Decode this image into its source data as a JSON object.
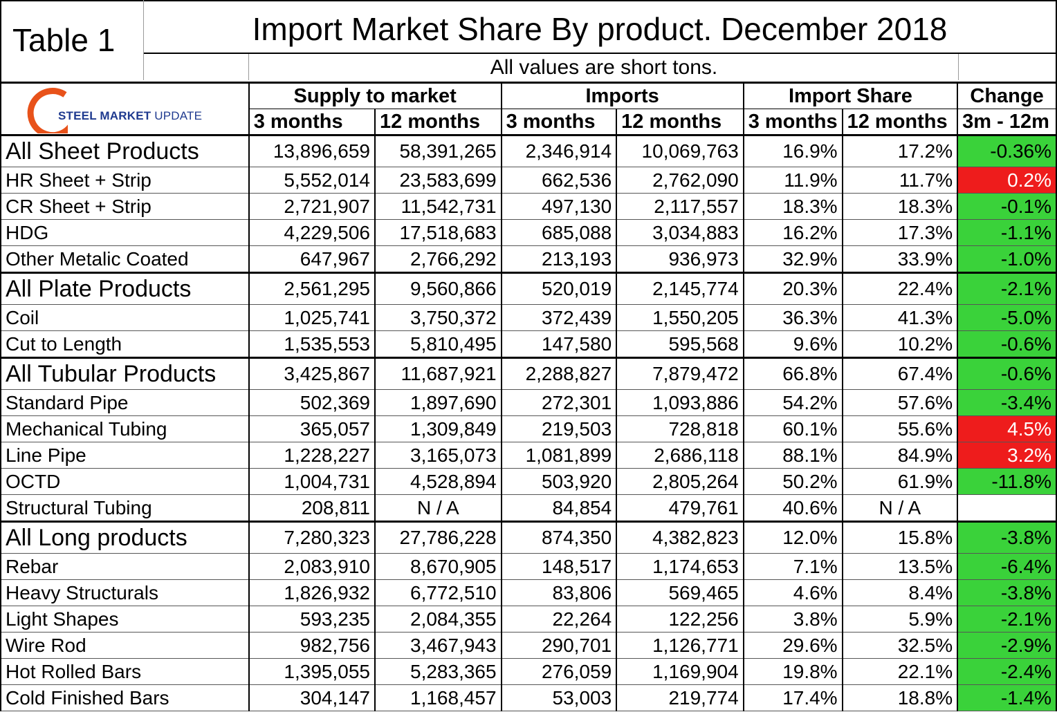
{
  "table_label": "Table 1",
  "title": "Import Market Share By product. December 2018",
  "units_note": "All values are short tons.",
  "logo": {
    "bold": "STEEL MARKET",
    "light": " UPDATE",
    "accent_color": "#e8521a"
  },
  "headers": {
    "groups": [
      "Supply to market",
      "Imports",
      "Import Share",
      "Change"
    ],
    "sub": [
      "3 months",
      "12 months",
      "3 months",
      "12 months",
      "3 months",
      "12 months",
      "3m - 12m"
    ]
  },
  "colors": {
    "positive_change": "#ee1c1c",
    "negative_change": "#3ad23a"
  },
  "rows": [
    {
      "product": "All Sheet Products",
      "category": true,
      "supply_3m": "13,896,659",
      "supply_12m": "58,391,265",
      "imports_3m": "2,346,914",
      "imports_12m": "10,069,763",
      "share_3m": "16.9%",
      "share_12m": "17.2%",
      "change": "-0.36%",
      "change_color": "green"
    },
    {
      "product": "HR Sheet + Strip",
      "category": false,
      "supply_3m": "5,552,014",
      "supply_12m": "23,583,699",
      "imports_3m": "662,536",
      "imports_12m": "2,762,090",
      "share_3m": "11.9%",
      "share_12m": "11.7%",
      "change": "0.2%",
      "change_color": "red"
    },
    {
      "product": "CR Sheet + Strip",
      "category": false,
      "supply_3m": "2,721,907",
      "supply_12m": "11,542,731",
      "imports_3m": "497,130",
      "imports_12m": "2,117,557",
      "share_3m": "18.3%",
      "share_12m": "18.3%",
      "change": "-0.1%",
      "change_color": "green"
    },
    {
      "product": "HDG",
      "category": false,
      "supply_3m": "4,229,506",
      "supply_12m": "17,518,683",
      "imports_3m": "685,088",
      "imports_12m": "3,034,883",
      "share_3m": "16.2%",
      "share_12m": "17.3%",
      "change": "-1.1%",
      "change_color": "green"
    },
    {
      "product": "Other Metalic Coated",
      "category": false,
      "supply_3m": "647,967",
      "supply_12m": "2,766,292",
      "imports_3m": "213,193",
      "imports_12m": "936,973",
      "share_3m": "32.9%",
      "share_12m": "33.9%",
      "change": "-1.0%",
      "change_color": "green"
    },
    {
      "product": "All Plate Products",
      "category": true,
      "supply_3m": "2,561,295",
      "supply_12m": "9,560,866",
      "imports_3m": "520,019",
      "imports_12m": "2,145,774",
      "share_3m": "20.3%",
      "share_12m": "22.4%",
      "change": "-2.1%",
      "change_color": "green"
    },
    {
      "product": "Coil",
      "category": false,
      "supply_3m": "1,025,741",
      "supply_12m": "3,750,372",
      "imports_3m": "372,439",
      "imports_12m": "1,550,205",
      "share_3m": "36.3%",
      "share_12m": "41.3%",
      "change": "-5.0%",
      "change_color": "green"
    },
    {
      "product": "Cut to Length",
      "category": false,
      "supply_3m": "1,535,553",
      "supply_12m": "5,810,495",
      "imports_3m": "147,580",
      "imports_12m": "595,568",
      "share_3m": "9.6%",
      "share_12m": "10.2%",
      "change": "-0.6%",
      "change_color": "green"
    },
    {
      "product": "All Tubular Products",
      "category": true,
      "supply_3m": "3,425,867",
      "supply_12m": "11,687,921",
      "imports_3m": "2,288,827",
      "imports_12m": "7,879,472",
      "share_3m": "66.8%",
      "share_12m": "67.4%",
      "change": "-0.6%",
      "change_color": "green"
    },
    {
      "product": "Standard Pipe",
      "category": false,
      "supply_3m": "502,369",
      "supply_12m": "1,897,690",
      "imports_3m": "272,301",
      "imports_12m": "1,093,886",
      "share_3m": "54.2%",
      "share_12m": "57.6%",
      "change": "-3.4%",
      "change_color": "green"
    },
    {
      "product": "Mechanical Tubing",
      "category": false,
      "supply_3m": "365,057",
      "supply_12m": "1,309,849",
      "imports_3m": "219,503",
      "imports_12m": "728,818",
      "share_3m": "60.1%",
      "share_12m": "55.6%",
      "change": "4.5%",
      "change_color": "red"
    },
    {
      "product": "Line Pipe",
      "category": false,
      "supply_3m": "1,228,227",
      "supply_12m": "3,165,073",
      "imports_3m": "1,081,899",
      "imports_12m": "2,686,118",
      "share_3m": "88.1%",
      "share_12m": "84.9%",
      "change": "3.2%",
      "change_color": "red"
    },
    {
      "product": "OCTD",
      "category": false,
      "supply_3m": "1,004,731",
      "supply_12m": "4,528,894",
      "imports_3m": "503,920",
      "imports_12m": "2,805,264",
      "share_3m": "50.2%",
      "share_12m": "61.9%",
      "change": "-11.8%",
      "change_color": "green"
    },
    {
      "product": "Structural Tubing",
      "category": false,
      "supply_3m": "208,811",
      "supply_12m": "N / A",
      "imports_3m": "84,854",
      "imports_12m": "479,761",
      "share_3m": "40.6%",
      "share_12m": "N / A",
      "change": "",
      "change_color": "none"
    },
    {
      "product": "All Long products",
      "category": true,
      "supply_3m": "7,280,323",
      "supply_12m": "27,786,228",
      "imports_3m": "874,350",
      "imports_12m": "4,382,823",
      "share_3m": "12.0%",
      "share_12m": "15.8%",
      "change": "-3.8%",
      "change_color": "green"
    },
    {
      "product": "Rebar",
      "category": false,
      "supply_3m": "2,083,910",
      "supply_12m": "8,670,905",
      "imports_3m": "148,517",
      "imports_12m": "1,174,653",
      "share_3m": "7.1%",
      "share_12m": "13.5%",
      "change": "-6.4%",
      "change_color": "green"
    },
    {
      "product": "Heavy Structurals",
      "category": false,
      "supply_3m": "1,826,932",
      "supply_12m": "6,772,510",
      "imports_3m": "83,806",
      "imports_12m": "569,465",
      "share_3m": "4.6%",
      "share_12m": "8.4%",
      "change": "-3.8%",
      "change_color": "green"
    },
    {
      "product": "Light Shapes",
      "category": false,
      "supply_3m": "593,235",
      "supply_12m": "2,084,355",
      "imports_3m": "22,264",
      "imports_12m": "122,256",
      "share_3m": "3.8%",
      "share_12m": "5.9%",
      "change": "-2.1%",
      "change_color": "green"
    },
    {
      "product": "Wire Rod",
      "category": false,
      "supply_3m": "982,756",
      "supply_12m": "3,467,943",
      "imports_3m": "290,701",
      "imports_12m": "1,126,771",
      "share_3m": "29.6%",
      "share_12m": "32.5%",
      "change": "-2.9%",
      "change_color": "green"
    },
    {
      "product": "Hot Rolled Bars",
      "category": false,
      "supply_3m": "1,395,055",
      "supply_12m": "5,283,365",
      "imports_3m": "276,059",
      "imports_12m": "1,169,904",
      "share_3m": "19.8%",
      "share_12m": "22.1%",
      "change": "-2.4%",
      "change_color": "green"
    },
    {
      "product": "Cold Finished Bars",
      "category": false,
      "supply_3m": "304,147",
      "supply_12m": "1,168,457",
      "imports_3m": "53,003",
      "imports_12m": "219,774",
      "share_3m": "17.4%",
      "share_12m": "18.8%",
      "change": "-1.4%",
      "change_color": "green"
    }
  ]
}
